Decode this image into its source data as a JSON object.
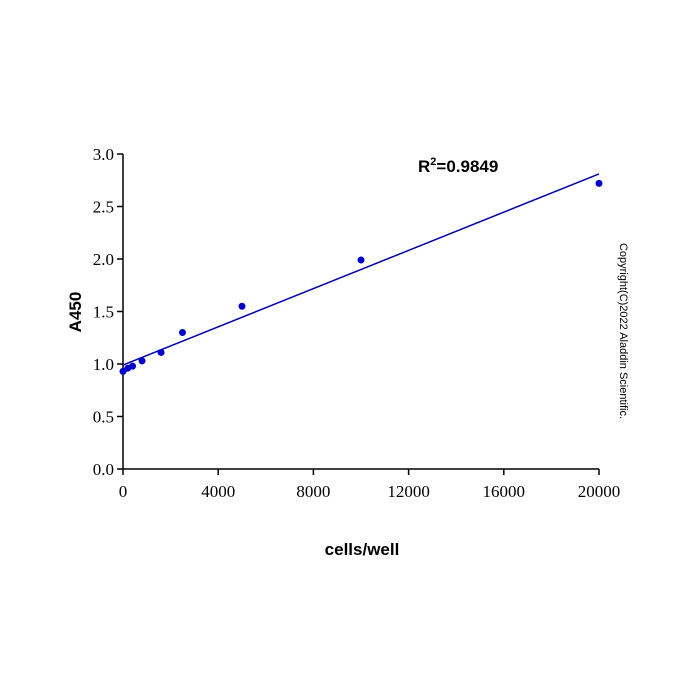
{
  "chart_data": {
    "type": "scatter",
    "x_label": "cells/well",
    "y_label": "A450",
    "annotation": {
      "base": "R",
      "sup": "2",
      "rest": "=0.9849"
    },
    "copyright": "Copyright(C)2022 Aladdin Scientific.",
    "x": [
      0,
      200,
      400,
      800,
      1600,
      2500,
      5000,
      10000,
      20000
    ],
    "values": [
      0.93,
      0.96,
      0.98,
      1.03,
      1.11,
      1.3,
      1.55,
      1.99,
      2.72
    ],
    "color": "#0000cc",
    "fit_line": {
      "x": [
        0,
        20000
      ],
      "values": [
        0.99,
        2.81
      ],
      "color": "#0000aa"
    },
    "xlim": [
      0,
      20000
    ],
    "xticks": [
      0,
      4000,
      8000,
      12000,
      16000,
      20000
    ],
    "ylim": [
      0,
      3.0
    ],
    "yticks": [
      {
        "value": 0,
        "label": "0.0"
      },
      {
        "value": 0.5,
        "label": "0.5"
      },
      {
        "value": 1.0,
        "label": "1.0"
      },
      {
        "value": 1.5,
        "label": "1.5"
      },
      {
        "value": 2.0,
        "label": "2.0"
      },
      {
        "value": 2.5,
        "label": "2.5"
      },
      {
        "value": 3.0,
        "label": "3.0"
      }
    ]
  }
}
